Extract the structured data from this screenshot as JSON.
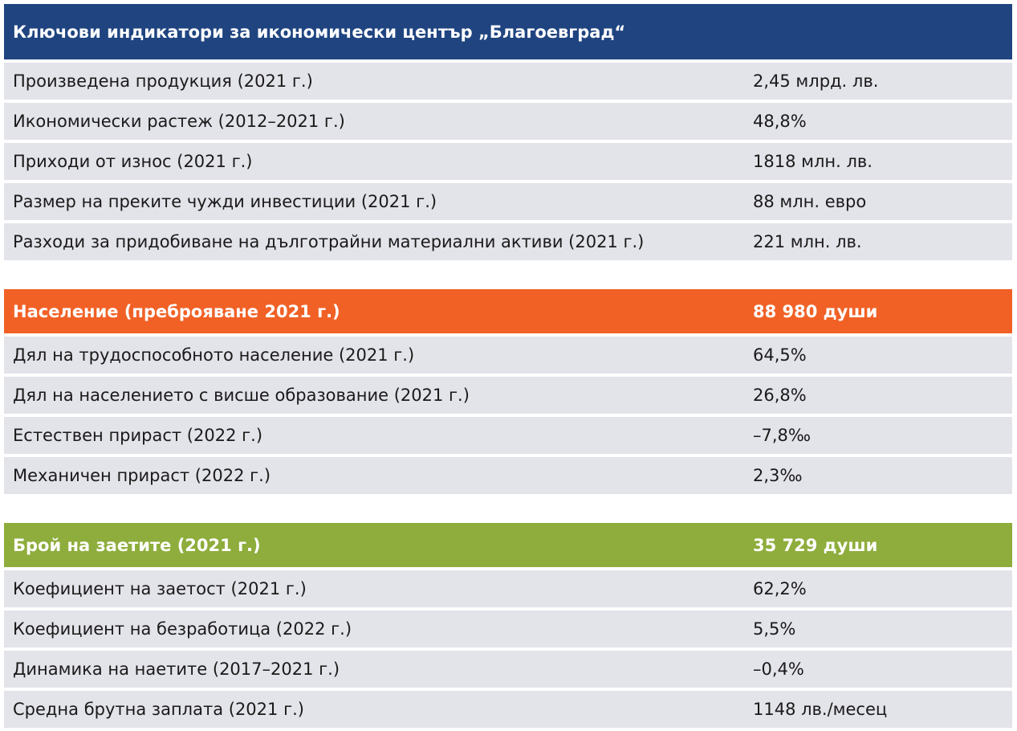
{
  "economic": {
    "title": "Ключови индикатори за икономически център „Благоевград“",
    "rows": [
      {
        "label": "Произведена продукция (2021 г.)",
        "value": "2,45 млрд. лв."
      },
      {
        "label": "Икономически растеж (2012–2021 г.)",
        "value": "48,8%"
      },
      {
        "label": "Приходи от износ (2021 г.)",
        "value": "1818 млн. лв."
      },
      {
        "label": "Размер на преките чужди инвестиции (2021 г.)",
        "value": "88 млн. евро"
      },
      {
        "label": "Разходи за придобиване на дълготрайни материални активи (2021 г.)",
        "value": "221 млн. лв."
      }
    ]
  },
  "population": {
    "title": "Население (преброяване 2021 г.)",
    "value": "88 980 души",
    "rows": [
      {
        "label": "Дял на трудоспособното население (2021 г.)",
        "value": "64,5%"
      },
      {
        "label": "Дял на населението с висше образование (2021 г.)",
        "value": "26,8%"
      },
      {
        "label": "Естествен прираст (2022 г.)",
        "value": "–7,8‰"
      },
      {
        "label": "Механичен прираст (2022 г.)",
        "value": "2,3‰"
      }
    ]
  },
  "employment": {
    "title": "Брой на заетите (2021 г.)",
    "value": "35 729 души",
    "rows": [
      {
        "label": "Коефициент на заетост (2021 г.)",
        "value": "62,2%"
      },
      {
        "label": "Коефициент на безработица (2022 г.)",
        "value": "5,5%"
      },
      {
        "label": "Динамика на наетите (2017–2021 г.)",
        "value": "–0,4%"
      },
      {
        "label": "Средна брутна заплата (2021 г.)",
        "value": "1148 лв./месец"
      }
    ]
  },
  "colors": {
    "blue_header": "#1f4480",
    "orange_header": "#f16126",
    "green_header": "#8ead3c",
    "row_background": "#e3e3ea"
  }
}
